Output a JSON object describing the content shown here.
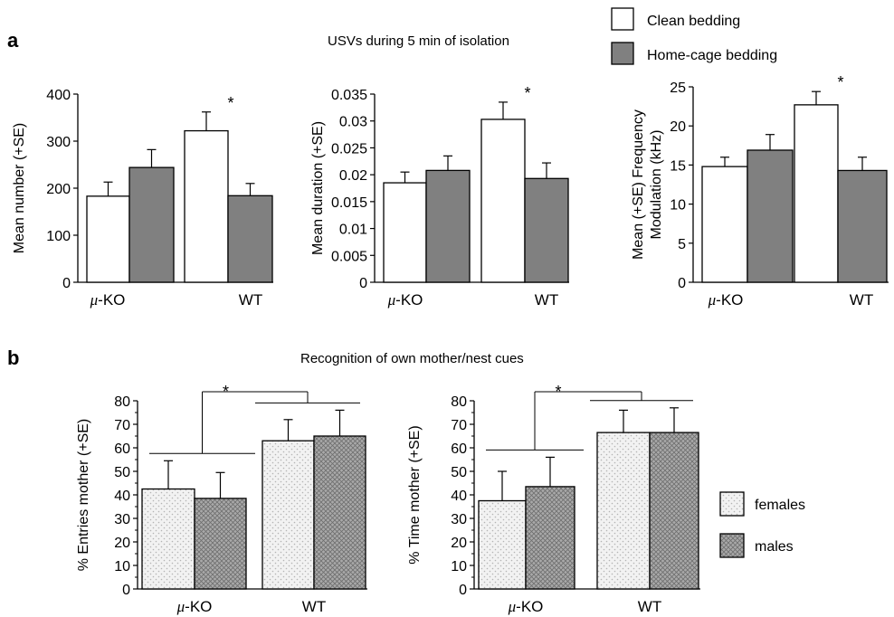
{
  "panel_labels": {
    "a": "a",
    "b": "b"
  },
  "titles": {
    "a": "USVs during 5 min of isolation",
    "b": "Recognition of own mother/nest cues"
  },
  "legend_a": [
    "Clean bedding",
    "Home-cage bedding"
  ],
  "legend_b": [
    "females",
    "males"
  ],
  "colors": {
    "clean": "#ffffff",
    "home_cage": "#808080",
    "females_fill": "#f2f2f2",
    "females_dot": "#b4b4b4",
    "males_fill": "#a9a9a9",
    "males_line": "#6e6e6e"
  },
  "chart_data": [
    {
      "type": "bar",
      "panel": "a",
      "categories": [
        "μ-KO",
        "WT"
      ],
      "series": [
        {
          "name": "Clean bedding",
          "values": [
            183,
            322
          ],
          "errors": [
            30,
            40
          ]
        },
        {
          "name": "Home-cage bedding",
          "values": [
            244,
            184
          ],
          "errors": [
            38,
            26
          ]
        }
      ],
      "ylabel": "Mean number (+SE)",
      "ylim": [
        0,
        400
      ],
      "yticks": [
        "0",
        "100",
        "200",
        "300",
        "400"
      ],
      "significance": [
        "*"
      ]
    },
    {
      "type": "bar",
      "panel": "a",
      "categories": [
        "μ-KO",
        "WT"
      ],
      "series": [
        {
          "name": "Clean bedding",
          "values": [
            0.0185,
            0.0303
          ],
          "errors": [
            0.002,
            0.0032
          ]
        },
        {
          "name": "Home-cage bedding",
          "values": [
            0.0208,
            0.0193
          ],
          "errors": [
            0.0027,
            0.0029
          ]
        }
      ],
      "ylabel": "Mean duration (+SE)",
      "ylim": [
        0,
        0.035
      ],
      "yticks": [
        "0",
        "0.005",
        "0.01",
        "0.015",
        "0.02",
        "0.025",
        "0.03",
        "0.035"
      ],
      "significance": [
        "*"
      ]
    },
    {
      "type": "bar",
      "panel": "a",
      "categories": [
        "μ-KO",
        "WT"
      ],
      "series": [
        {
          "name": "Clean bedding",
          "values": [
            14.8,
            22.7
          ],
          "errors": [
            1.2,
            1.7
          ]
        },
        {
          "name": "Home-cage bedding",
          "values": [
            16.9,
            14.3
          ],
          "errors": [
            2.0,
            1.7
          ]
        }
      ],
      "ylabel": "Mean (+SE) Frequency Modulation (kHz)",
      "ylim": [
        0,
        25
      ],
      "yticks": [
        "0",
        "5",
        "10",
        "15",
        "20",
        "25"
      ],
      "significance": [
        "*"
      ]
    },
    {
      "type": "bar",
      "panel": "b",
      "categories": [
        "μ-KO",
        "WT"
      ],
      "series": [
        {
          "name": "females",
          "values": [
            42.5,
            63
          ],
          "errors": [
            12,
            9
          ]
        },
        {
          "name": "males",
          "values": [
            38.5,
            65
          ],
          "errors": [
            11,
            11
          ]
        }
      ],
      "ylabel": "% Entries mother (+SE)",
      "ylim": [
        0,
        80
      ],
      "yticks": [
        "0",
        "10",
        "20",
        "30",
        "40",
        "50",
        "60",
        "70",
        "80"
      ],
      "significance": [
        "*"
      ]
    },
    {
      "type": "bar",
      "panel": "b",
      "categories": [
        "μ-KO",
        "WT"
      ],
      "series": [
        {
          "name": "females",
          "values": [
            37.5,
            66.5
          ],
          "errors": [
            12.5,
            9.5
          ]
        },
        {
          "name": "males",
          "values": [
            43.5,
            66.5
          ],
          "errors": [
            12.5,
            10.5
          ]
        }
      ],
      "ylabel": "% Time mother (+SE)",
      "ylim": [
        0,
        80
      ],
      "yticks": [
        "0",
        "10",
        "20",
        "30",
        "40",
        "50",
        "60",
        "70",
        "80"
      ],
      "significance": [
        "*"
      ]
    }
  ]
}
